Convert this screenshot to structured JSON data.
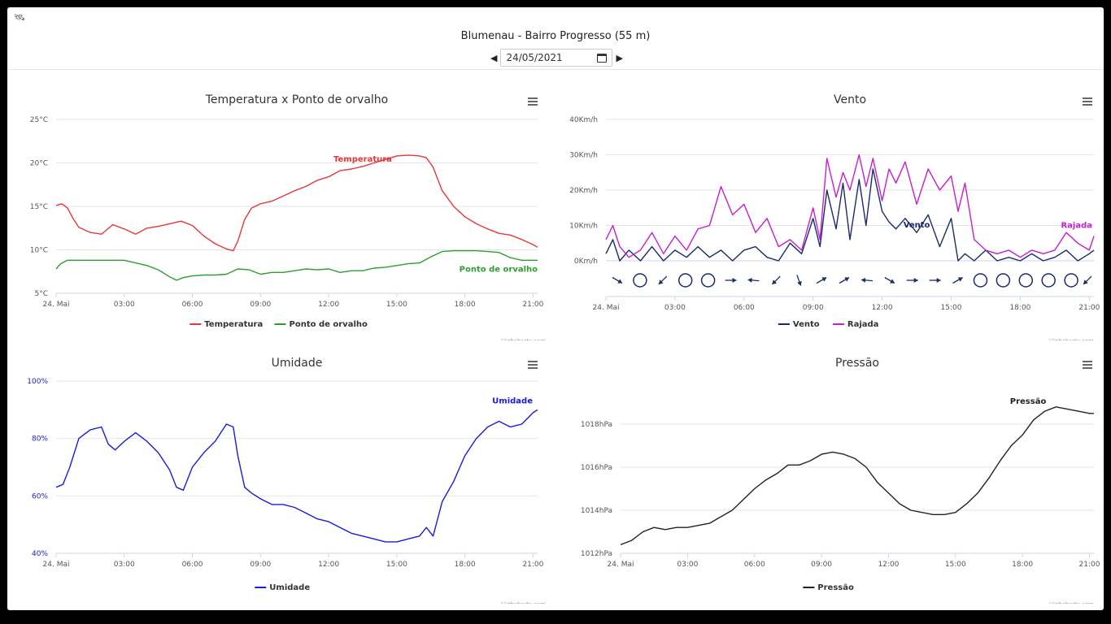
{
  "header": {
    "title": "Blumenau - Bairro Progresso (55 m)",
    "date": "24/05/2021",
    "prev_icon": "caret-left-icon",
    "next_icon": "caret-right-icon",
    "calendar_icon": "calendar-icon",
    "corner_icon": "satellite-icon"
  },
  "credits": "Highcharts.com",
  "chart_data": [
    {
      "id": "temp",
      "type": "line",
      "title": "Temperatura x Ponto de orvalho",
      "x_unit": "hours",
      "x_ticks": [
        "24. Mai",
        "03:00",
        "06:00",
        "09:00",
        "12:00",
        "15:00",
        "18:00",
        "21:00"
      ],
      "xlim": [
        0,
        21.2
      ],
      "y_ticks": [
        "5°C",
        "10°C",
        "15°C",
        "20°C",
        "25°C"
      ],
      "ylim": [
        5,
        25
      ],
      "grid": true,
      "legend": "bottom-center",
      "series": [
        {
          "name": "Temperatura",
          "color": "#e8353a",
          "x": [
            0,
            0.25,
            0.5,
            0.75,
            1,
            1.5,
            2,
            2.5,
            3,
            3.5,
            4,
            4.5,
            5,
            5.5,
            6,
            6.5,
            7,
            7.5,
            7.8,
            8,
            8.3,
            8.6,
            9,
            9.5,
            10,
            10.5,
            11,
            11.5,
            12,
            12.5,
            13,
            13.5,
            14,
            14.5,
            15,
            15.5,
            16,
            16.3,
            16.6,
            17,
            17.5,
            18,
            18.5,
            19,
            19.5,
            20,
            20.5,
            21,
            21.2
          ],
          "y": [
            15.1,
            15.3,
            14.8,
            13.6,
            12.6,
            12.0,
            11.8,
            12.9,
            12.4,
            11.8,
            12.5,
            12.7,
            13.0,
            13.3,
            12.8,
            11.6,
            10.7,
            10.1,
            9.9,
            11.0,
            13.5,
            14.8,
            15.3,
            15.6,
            16.2,
            16.8,
            17.3,
            18.0,
            18.4,
            19.1,
            19.3,
            19.6,
            20.0,
            20.4,
            20.8,
            20.9,
            20.8,
            20.6,
            19.5,
            16.8,
            15.0,
            13.8,
            13.0,
            12.4,
            11.9,
            11.7,
            11.2,
            10.6,
            10.3
          ]
        },
        {
          "name": "Ponto de orvalho",
          "color": "#2e9e2e",
          "x": [
            0,
            0.2,
            0.5,
            1,
            1.5,
            2,
            2.5,
            3,
            3.5,
            4,
            4.5,
            5,
            5.3,
            5.6,
            6,
            6.5,
            7,
            7.5,
            8,
            8.5,
            9,
            9.5,
            10,
            10.5,
            11,
            11.5,
            12,
            12.5,
            13,
            13.5,
            14,
            14.5,
            15,
            15.5,
            16,
            16.5,
            17,
            17.5,
            18,
            18.5,
            19,
            19.5,
            20,
            20.5,
            21,
            21.2
          ],
          "y": [
            7.8,
            8.4,
            8.8,
            8.8,
            8.8,
            8.8,
            8.8,
            8.8,
            8.5,
            8.2,
            7.7,
            6.9,
            6.5,
            6.8,
            7.0,
            7.1,
            7.1,
            7.2,
            7.8,
            7.7,
            7.2,
            7.4,
            7.4,
            7.6,
            7.8,
            7.7,
            7.8,
            7.4,
            7.6,
            7.6,
            7.9,
            8.0,
            8.2,
            8.4,
            8.5,
            9.2,
            9.8,
            9.9,
            9.9,
            9.9,
            9.8,
            9.7,
            9.1,
            8.8,
            8.8,
            8.8
          ]
        }
      ],
      "labels": [
        {
          "text": "Temperatura",
          "series": 0
        },
        {
          "text": "Ponto de orvalho",
          "series": 1
        }
      ]
    },
    {
      "id": "wind",
      "type": "line",
      "title": "Vento",
      "x_unit": "hours",
      "x_ticks": [
        "24. Mai",
        "03:00",
        "06:00",
        "09:00",
        "12:00",
        "15:00",
        "18:00",
        "21:00"
      ],
      "xlim": [
        0,
        21.2
      ],
      "y_ticks": [
        "0Km/h",
        "10Km/h",
        "20Km/h",
        "30Km/h",
        "40Km/h"
      ],
      "ylim": [
        0,
        40
      ],
      "grid": true,
      "legend": "bottom-center",
      "series": [
        {
          "name": "Vento",
          "color": "#1a2a6c",
          "x": [
            0,
            0.3,
            0.6,
            1,
            1.5,
            2,
            2.5,
            3,
            3.5,
            4,
            4.5,
            5,
            5.5,
            6,
            6.5,
            7,
            7.5,
            8,
            8.5,
            9,
            9.3,
            9.6,
            10,
            10.3,
            10.6,
            11,
            11.3,
            11.6,
            12,
            12.3,
            12.6,
            13,
            13.5,
            14,
            14.5,
            15,
            15.3,
            15.6,
            16,
            16.5,
            17,
            17.5,
            18,
            18.5,
            19,
            19.5,
            20,
            20.5,
            21,
            21.2
          ],
          "y": [
            2,
            6,
            0,
            3,
            0,
            4,
            0,
            3,
            1,
            4,
            1,
            3,
            0,
            3,
            4,
            1,
            0,
            5,
            2,
            12,
            4,
            20,
            9,
            22,
            6,
            23,
            10,
            26,
            14,
            11,
            9,
            12,
            8,
            13,
            4,
            12,
            0,
            2,
            0,
            3,
            0,
            1,
            0,
            2,
            0,
            1,
            3,
            0,
            2,
            3
          ]
        },
        {
          "name": "Rajada",
          "color": "#c41fcf",
          "x": [
            0,
            0.3,
            0.6,
            1,
            1.5,
            2,
            2.5,
            3,
            3.5,
            4,
            4.5,
            5,
            5.5,
            6,
            6.5,
            7,
            7.5,
            8,
            8.5,
            9,
            9.3,
            9.6,
            10,
            10.3,
            10.6,
            11,
            11.3,
            11.6,
            12,
            12.3,
            12.6,
            13,
            13.5,
            14,
            14.5,
            15,
            15.3,
            15.6,
            16,
            16.5,
            17,
            17.5,
            18,
            18.5,
            19,
            19.5,
            20,
            20.5,
            21,
            21.2
          ],
          "y": [
            6,
            10,
            4,
            1,
            3,
            8,
            2,
            7,
            3,
            9,
            10,
            21,
            13,
            16,
            8,
            12,
            4,
            6,
            3,
            15,
            6,
            29,
            18,
            25,
            20,
            30,
            21,
            29,
            17,
            26,
            22,
            28,
            16,
            26,
            20,
            24,
            14,
            22,
            6,
            3,
            2,
            3,
            1,
            3,
            2,
            3,
            8,
            5,
            3,
            7
          ]
        }
      ],
      "direction_icons": [
        "arrow-down-right",
        "calm-circle",
        "arrow-down-left",
        "calm-circle",
        "calm-circle",
        "arrow-right",
        "arrow-left",
        "arrow-down-left",
        "arrow-down",
        "arrow-up-right",
        "arrow-up-right",
        "arrow-left",
        "arrow-down-right",
        "arrow-right",
        "arrow-right",
        "arrow-up-right",
        "calm-circle",
        "calm-circle",
        "calm-circle",
        "calm-circle",
        "calm-circle",
        "arrow-down-left"
      ],
      "labels": [
        {
          "text": "Vento",
          "series": 0
        },
        {
          "text": "Rajada",
          "series": 1
        }
      ]
    },
    {
      "id": "hum",
      "type": "line",
      "title": "Umidade",
      "x_unit": "hours",
      "x_ticks": [
        "24. Mai",
        "03:00",
        "06:00",
        "09:00",
        "12:00",
        "15:00",
        "18:00",
        "21:00"
      ],
      "xlim": [
        0,
        21.2
      ],
      "y_ticks": [
        "40%",
        "60%",
        "80%",
        "100%"
      ],
      "ylim": [
        40,
        100
      ],
      "grid": true,
      "legend": "bottom-center",
      "series": [
        {
          "name": "Umidade",
          "color": "#1a1adb",
          "x": [
            0,
            0.3,
            0.6,
            1,
            1.5,
            2,
            2.3,
            2.6,
            3,
            3.5,
            4,
            4.5,
            5,
            5.3,
            5.6,
            6,
            6.5,
            7,
            7.5,
            7.8,
            8,
            8.3,
            8.6,
            9,
            9.5,
            10,
            10.5,
            11,
            11.5,
            12,
            12.5,
            13,
            13.5,
            14,
            14.5,
            15,
            15.5,
            16,
            16.3,
            16.6,
            17,
            17.5,
            18,
            18.5,
            19,
            19.5,
            20,
            20.5,
            21,
            21.2
          ],
          "y": [
            63,
            64,
            70,
            80,
            83,
            84,
            78,
            76,
            79,
            82,
            79,
            75,
            69,
            63,
            62,
            70,
            75,
            79,
            85,
            84,
            74,
            63,
            61,
            59,
            57,
            57,
            56,
            54,
            52,
            51,
            49,
            47,
            46,
            45,
            44,
            44,
            45,
            46,
            49,
            46,
            58,
            65,
            74,
            80,
            84,
            86,
            84,
            85,
            89,
            90
          ]
        }
      ],
      "labels": [
        {
          "text": "Umidade",
          "series": 0
        }
      ]
    },
    {
      "id": "pres",
      "type": "line",
      "title": "Pressão",
      "x_unit": "hours",
      "x_ticks": [
        "24. Mai",
        "03:00",
        "06:00",
        "09:00",
        "12:00",
        "15:00",
        "18:00",
        "21:00"
      ],
      "xlim": [
        0,
        21.2
      ],
      "y_ticks": [
        "1012hPa",
        "1014hPa",
        "1016hPa",
        "1018hPa"
      ],
      "ylim": [
        1012,
        1020
      ],
      "grid": true,
      "legend": "bottom-center",
      "series": [
        {
          "name": "Pressão",
          "color": "#222222",
          "x": [
            0,
            0.5,
            1,
            1.5,
            2,
            2.5,
            3,
            3.5,
            4,
            4.5,
            5,
            5.5,
            6,
            6.5,
            7,
            7.5,
            8,
            8.5,
            9,
            9.5,
            10,
            10.5,
            11,
            11.5,
            12,
            12.5,
            13,
            13.5,
            14,
            14.5,
            15,
            15.5,
            16,
            16.5,
            17,
            17.5,
            18,
            18.5,
            19,
            19.5,
            20,
            20.5,
            21,
            21.2
          ],
          "y": [
            1012.4,
            1012.6,
            1013.0,
            1013.2,
            1013.1,
            1013.2,
            1013.2,
            1013.3,
            1013.4,
            1013.7,
            1014.0,
            1014.5,
            1015.0,
            1015.4,
            1015.7,
            1016.1,
            1016.1,
            1016.3,
            1016.6,
            1016.7,
            1016.6,
            1016.4,
            1016.0,
            1015.3,
            1014.8,
            1014.3,
            1014.0,
            1013.9,
            1013.8,
            1013.8,
            1013.9,
            1014.3,
            1014.8,
            1015.5,
            1016.3,
            1017.0,
            1017.5,
            1018.2,
            1018.6,
            1018.8,
            1018.7,
            1018.6,
            1018.5,
            1018.5
          ]
        }
      ],
      "labels": [
        {
          "text": "Pressão",
          "series": 0
        }
      ]
    }
  ]
}
